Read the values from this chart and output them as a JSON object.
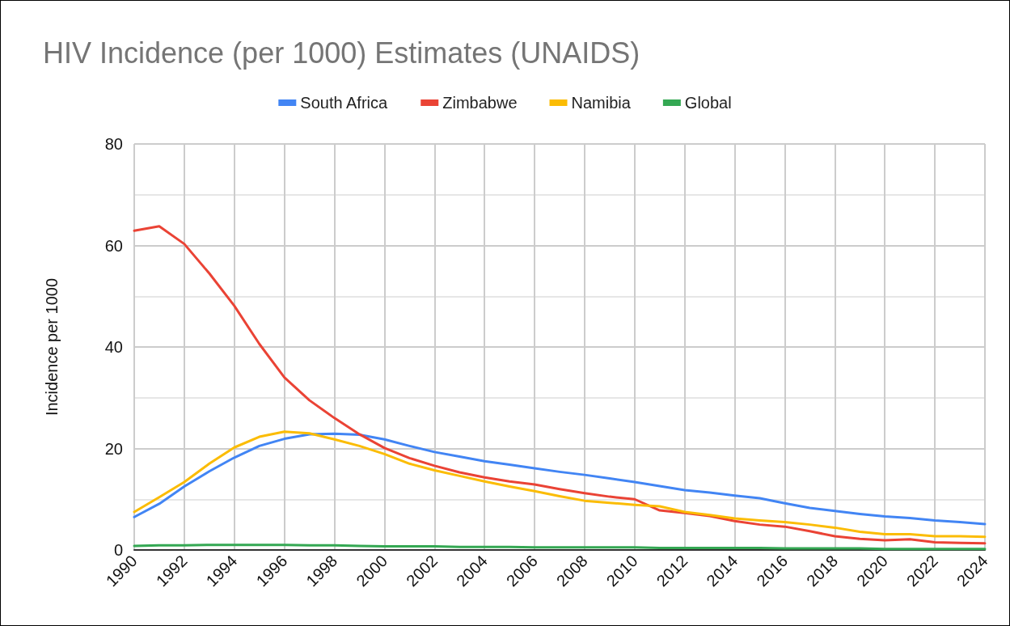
{
  "chart_data": {
    "type": "line",
    "title": "HIV Incidence (per 1000) Estimates (UNAIDS)",
    "ylabel": "Incidence per 1000",
    "x": [
      1990,
      1991,
      1992,
      1993,
      1994,
      1995,
      1996,
      1997,
      1998,
      1999,
      2000,
      2001,
      2002,
      2003,
      2004,
      2005,
      2006,
      2007,
      2008,
      2009,
      2010,
      2011,
      2012,
      2013,
      2014,
      2015,
      2016,
      2017,
      2018,
      2019,
      2020,
      2021,
      2022,
      2023,
      2024
    ],
    "series": [
      {
        "name": "South Africa",
        "color": "#4285f4",
        "values": [
          6.5,
          9.1,
          12.5,
          15.5,
          18.2,
          20.5,
          21.9,
          22.8,
          22.9,
          22.7,
          21.8,
          20.5,
          19.3,
          18.4,
          17.5,
          16.8,
          16.1,
          15.4,
          14.8,
          14.1,
          13.4,
          12.6,
          11.8,
          11.3,
          10.7,
          10.2,
          9.2,
          8.3,
          7.7,
          7.1,
          6.6,
          6.3,
          5.8,
          5.5,
          5.1
        ]
      },
      {
        "name": "Zimbabwe",
        "color": "#ea4335",
        "values": [
          62.9,
          63.8,
          60.3,
          54.5,
          48.1,
          40.6,
          34.0,
          29.5,
          26.0,
          22.8,
          20.1,
          18.1,
          16.6,
          15.3,
          14.3,
          13.5,
          12.9,
          12.0,
          11.2,
          10.5,
          10.0,
          7.8,
          7.3,
          6.7,
          5.7,
          5.0,
          4.6,
          3.7,
          2.7,
          2.2,
          1.9,
          2.1,
          1.5,
          1.4,
          1.3
        ]
      },
      {
        "name": "Namibia",
        "color": "#fbbc04",
        "values": [
          7.5,
          10.4,
          13.4,
          17.0,
          20.2,
          22.3,
          23.3,
          23.0,
          21.8,
          20.5,
          18.9,
          17.0,
          15.7,
          14.6,
          13.5,
          12.5,
          11.6,
          10.6,
          9.7,
          9.3,
          8.9,
          8.6,
          7.5,
          6.9,
          6.2,
          5.8,
          5.5,
          5.0,
          4.4,
          3.6,
          3.1,
          3.1,
          2.7,
          2.7,
          2.6
        ]
      },
      {
        "name": "Global",
        "color": "#34a853",
        "values": [
          0.8,
          0.9,
          0.9,
          1.0,
          1.0,
          1.0,
          1.0,
          0.9,
          0.9,
          0.8,
          0.7,
          0.7,
          0.7,
          0.6,
          0.6,
          0.6,
          0.5,
          0.5,
          0.5,
          0.5,
          0.5,
          0.4,
          0.4,
          0.4,
          0.4,
          0.4,
          0.3,
          0.3,
          0.3,
          0.3,
          0.2,
          0.2,
          0.2,
          0.2,
          0.2
        ]
      }
    ],
    "xlim": [
      1990,
      2024
    ],
    "xticks": [
      1990,
      1992,
      1994,
      1996,
      1998,
      2000,
      2002,
      2004,
      2006,
      2008,
      2010,
      2012,
      2014,
      2016,
      2018,
      2020,
      2022,
      2024
    ],
    "ylim": [
      0,
      80
    ],
    "yticks": [
      0,
      {
        "value": 10,
        "label": null
      },
      20,
      {
        "value": 30,
        "label": null
      },
      40,
      {
        "value": 50,
        "label": null
      },
      60,
      {
        "value": 70,
        "label": null
      },
      80
    ],
    "grid": true,
    "legend": "top",
    "marker": "none",
    "line_style": "solid"
  }
}
